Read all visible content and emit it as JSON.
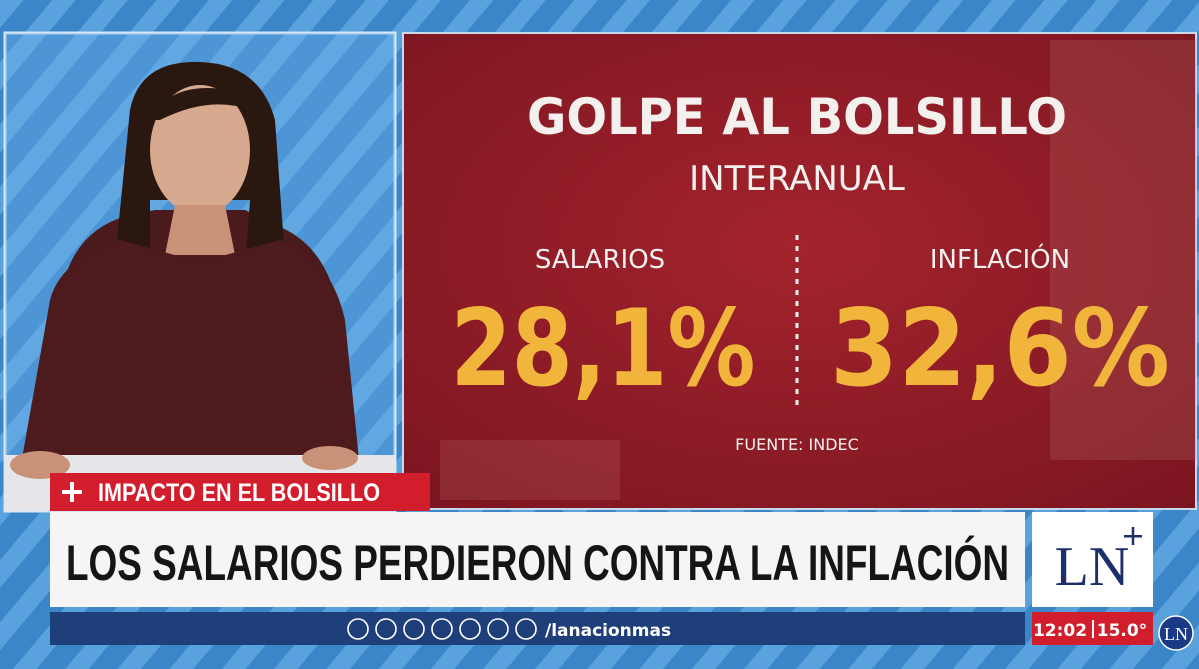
{
  "graphic": {
    "title": "GOLPE AL BOLSILLO",
    "subtitle": "INTERANUAL",
    "left": {
      "label": "SALARIOS",
      "value": "28,1%"
    },
    "right": {
      "label": "INFLACIÓN",
      "value": "32,6%"
    },
    "source": "FUENTE: INDEC"
  },
  "lower_third": {
    "tag": "IMPACTO EN EL BOLSILLO",
    "headline": "LOS SALARIOS PERDIERON CONTRA LA INFLACIÓN",
    "social_handle": "/lanacionmas"
  },
  "channel": {
    "logo": "LN",
    "time": "12:02",
    "temperature": "15.0°",
    "corner_logo": "LN"
  }
}
